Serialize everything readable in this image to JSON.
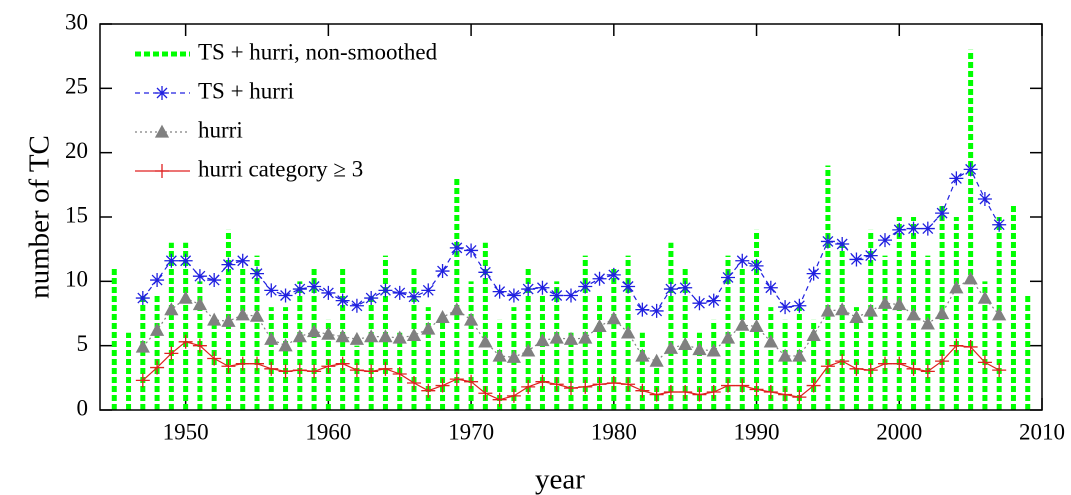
{
  "chart_data": {
    "type": "combo",
    "xlabel": "year",
    "ylabel": "number of TC",
    "xlim": [
      1944,
      2010
    ],
    "xticks": [
      1950,
      1960,
      1970,
      1980,
      1990,
      2000,
      2010
    ],
    "ylim": [
      0,
      30
    ],
    "yticks": [
      0,
      5,
      10,
      15,
      20,
      25,
      30
    ],
    "legend": "top-left",
    "series": [
      {
        "name": "TS + hurri, non-smoothed",
        "type": "bar",
        "color": "#00ff00",
        "x": [
          1945,
          1946,
          1947,
          1948,
          1949,
          1950,
          1951,
          1952,
          1953,
          1954,
          1955,
          1956,
          1957,
          1958,
          1959,
          1960,
          1961,
          1962,
          1963,
          1964,
          1965,
          1966,
          1967,
          1968,
          1969,
          1970,
          1971,
          1972,
          1973,
          1974,
          1975,
          1976,
          1977,
          1978,
          1979,
          1980,
          1981,
          1982,
          1983,
          1984,
          1985,
          1986,
          1987,
          1988,
          1989,
          1990,
          1991,
          1992,
          1993,
          1994,
          1995,
          1996,
          1997,
          1998,
          1999,
          2000,
          2001,
          2002,
          2003,
          2004,
          2005,
          2006,
          2007,
          2008,
          2009
        ],
        "values": [
          11,
          6,
          9,
          9,
          13,
          13,
          10,
          7,
          14,
          11,
          12,
          8,
          8,
          10,
          11,
          7,
          11,
          5,
          9,
          12,
          6,
          11,
          8,
          7,
          18,
          10,
          13,
          7,
          8,
          11,
          9,
          10,
          6,
          12,
          9,
          11,
          12,
          6,
          4,
          13,
          11,
          6,
          7,
          12,
          11,
          14,
          8,
          7,
          8,
          7,
          19,
          13,
          8,
          14,
          12,
          15,
          15,
          12,
          16,
          15,
          28,
          10,
          15,
          16,
          9
        ]
      },
      {
        "name": "TS + hurri",
        "type": "line",
        "marker": "star",
        "dash": "dashed",
        "color": "#2020e0",
        "x": [
          1947,
          1948,
          1949,
          1950,
          1951,
          1952,
          1953,
          1954,
          1955,
          1956,
          1957,
          1958,
          1959,
          1960,
          1961,
          1962,
          1963,
          1964,
          1965,
          1966,
          1967,
          1968,
          1969,
          1970,
          1971,
          1972,
          1973,
          1974,
          1975,
          1976,
          1977,
          1978,
          1979,
          1980,
          1981,
          1982,
          1983,
          1984,
          1985,
          1986,
          1987,
          1988,
          1989,
          1990,
          1991,
          1992,
          1993,
          1994,
          1995,
          1996,
          1997,
          1998,
          1999,
          2000,
          2001,
          2002,
          2003,
          2004,
          2005,
          2006,
          2007
        ],
        "values": [
          8.7,
          10.1,
          11.6,
          11.6,
          10.4,
          10.1,
          11.3,
          11.6,
          10.6,
          9.3,
          8.9,
          9.4,
          9.6,
          9.1,
          8.5,
          8.1,
          8.7,
          9.3,
          9.1,
          8.8,
          9.3,
          10.8,
          12.6,
          12.4,
          10.7,
          9.2,
          8.9,
          9.4,
          9.5,
          8.9,
          8.9,
          9.6,
          10.2,
          10.5,
          9.6,
          7.8,
          7.7,
          9.4,
          9.5,
          8.3,
          8.5,
          10.3,
          11.6,
          11.2,
          9.5,
          8.0,
          8.1,
          10.6,
          13.1,
          12.9,
          11.7,
          12.0,
          13.2,
          14.0,
          14.1,
          14.1,
          15.3,
          18.0,
          18.7,
          16.4,
          14.4
        ]
      },
      {
        "name": "hurri",
        "type": "line",
        "marker": "triangle",
        "dash": "dotted",
        "color": "#808080",
        "x": [
          1947,
          1948,
          1949,
          1950,
          1951,
          1952,
          1953,
          1954,
          1955,
          1956,
          1957,
          1958,
          1959,
          1960,
          1961,
          1962,
          1963,
          1964,
          1965,
          1966,
          1967,
          1968,
          1969,
          1970,
          1971,
          1972,
          1973,
          1974,
          1975,
          1976,
          1977,
          1978,
          1979,
          1980,
          1981,
          1982,
          1983,
          1984,
          1985,
          1986,
          1987,
          1988,
          1989,
          1990,
          1991,
          1992,
          1993,
          1994,
          1995,
          1996,
          1997,
          1998,
          1999,
          2000,
          2001,
          2002,
          2003,
          2004,
          2005,
          2006,
          2007
        ],
        "values": [
          4.9,
          6.2,
          7.8,
          8.7,
          8.2,
          7.0,
          6.9,
          7.4,
          7.3,
          5.5,
          5.0,
          5.7,
          6.1,
          5.9,
          5.7,
          5.5,
          5.7,
          5.7,
          5.6,
          5.8,
          6.3,
          7.2,
          7.8,
          7.0,
          5.3,
          4.2,
          4.1,
          4.6,
          5.4,
          5.6,
          5.5,
          5.6,
          6.5,
          7.1,
          6.0,
          4.2,
          3.8,
          4.8,
          5.1,
          4.7,
          4.6,
          5.6,
          6.6,
          6.5,
          5.3,
          4.2,
          4.2,
          5.8,
          7.7,
          7.8,
          7.2,
          7.7,
          8.3,
          8.2,
          7.4,
          6.7,
          7.5,
          9.5,
          10.2,
          8.7,
          7.4
        ]
      },
      {
        "name": "hurri category ≥ 3",
        "type": "line",
        "marker": "plus",
        "dash": "solid",
        "color": "#e02020",
        "x": [
          1947,
          1948,
          1949,
          1950,
          1951,
          1952,
          1953,
          1954,
          1955,
          1956,
          1957,
          1958,
          1959,
          1960,
          1961,
          1962,
          1963,
          1964,
          1965,
          1966,
          1967,
          1968,
          1969,
          1970,
          1971,
          1972,
          1973,
          1974,
          1975,
          1976,
          1977,
          1978,
          1979,
          1980,
          1981,
          1982,
          1983,
          1984,
          1985,
          1986,
          1987,
          1988,
          1989,
          1990,
          1991,
          1992,
          1993,
          1994,
          1995,
          1996,
          1997,
          1998,
          1999,
          2000,
          2001,
          2002,
          2003,
          2004,
          2005,
          2006,
          2007
        ],
        "values": [
          2.3,
          3.3,
          4.4,
          5.3,
          5.0,
          4.0,
          3.4,
          3.6,
          3.6,
          3.2,
          3.0,
          3.1,
          3.0,
          3.4,
          3.6,
          3.1,
          3.0,
          3.2,
          2.8,
          2.1,
          1.5,
          1.9,
          2.4,
          2.2,
          1.3,
          0.8,
          1.1,
          1.8,
          2.2,
          2.0,
          1.7,
          1.8,
          2.0,
          2.1,
          2.0,
          1.5,
          1.2,
          1.4,
          1.4,
          1.2,
          1.4,
          1.9,
          1.9,
          1.6,
          1.4,
          1.2,
          1.0,
          1.9,
          3.4,
          3.8,
          3.2,
          3.1,
          3.6,
          3.6,
          3.2,
          3.0,
          3.8,
          5.0,
          4.9,
          3.7,
          3.1
        ]
      }
    ]
  }
}
